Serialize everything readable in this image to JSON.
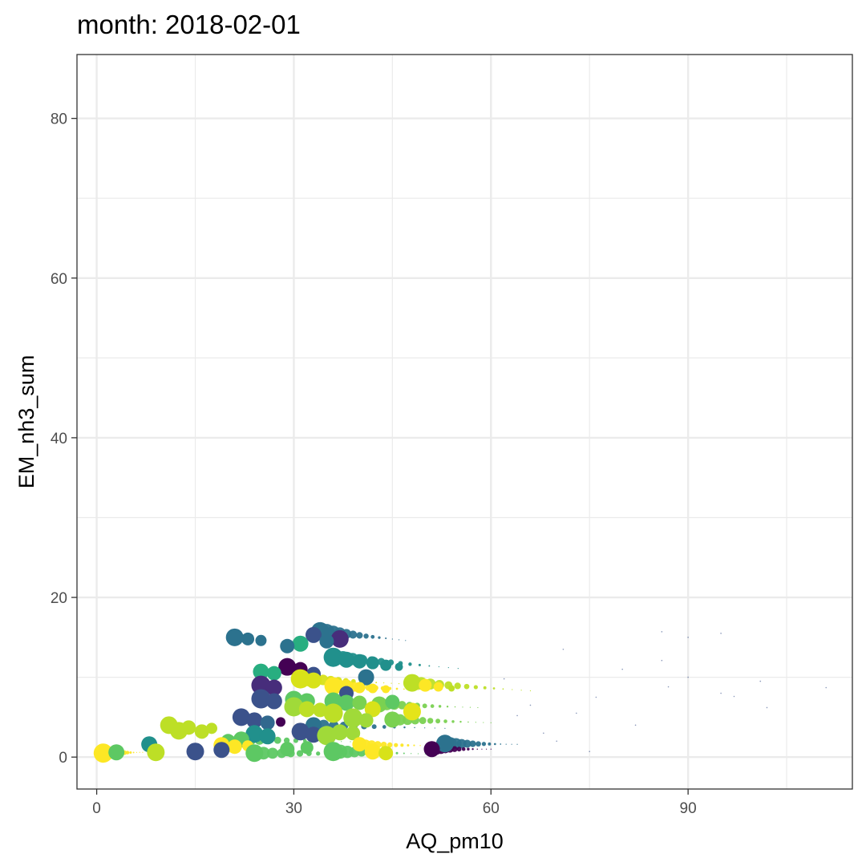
{
  "chart_data": {
    "type": "scatter",
    "title": "month: 2018-02-01",
    "xlabel": "AQ_pm10",
    "ylabel": "EM_nh3_sum",
    "xlim": [
      -3,
      115
    ],
    "ylim": [
      -4,
      88
    ],
    "x_ticks": [
      0,
      30,
      60,
      90
    ],
    "x_tick_labels": [
      "0",
      "30",
      "60",
      "90"
    ],
    "y_ticks": [
      0,
      20,
      40,
      60,
      80
    ],
    "y_tick_labels": [
      "0",
      "20",
      "40",
      "60",
      "80"
    ],
    "grid": true,
    "legend": "none",
    "panel_background": "#ffffff",
    "grid_color": "#ebebeb",
    "palette": [
      "#440154",
      "#3b528b",
      "#21908c",
      "#5dc863",
      "#bddf26",
      "#fde725"
    ],
    "points": [
      {
        "x": 21,
        "y": 15.0,
        "size": 11,
        "color": "#2c728e"
      },
      {
        "x": 23,
        "y": 14.8,
        "size": 8,
        "color": "#2c728e"
      },
      {
        "x": 25,
        "y": 14.6,
        "size": 7,
        "color": "#2c728e"
      },
      {
        "x": 34,
        "y": 15.8,
        "size": 11,
        "color": "#2c728e"
      },
      {
        "x": 33,
        "y": 15.3,
        "size": 10,
        "color": "#3b528b"
      },
      {
        "x": 37,
        "y": 14.8,
        "size": 11,
        "color": "#472d7b"
      },
      {
        "x": 35,
        "y": 14.5,
        "size": 9,
        "color": "#2c728e"
      },
      {
        "x": 31,
        "y": 14.2,
        "size": 10,
        "color": "#28ae80"
      },
      {
        "x": 29,
        "y": 13.9,
        "size": 9,
        "color": "#2c728e"
      },
      {
        "x": 36,
        "y": 12.5,
        "size": 12,
        "color": "#21908c"
      },
      {
        "x": 38,
        "y": 12.2,
        "size": 10,
        "color": "#21908c"
      },
      {
        "x": 40,
        "y": 12.0,
        "size": 9,
        "color": "#21908c"
      },
      {
        "x": 42,
        "y": 11.8,
        "size": 8,
        "color": "#21908c"
      },
      {
        "x": 44,
        "y": 11.5,
        "size": 7,
        "color": "#21908c"
      },
      {
        "x": 46,
        "y": 11.3,
        "size": 5,
        "color": "#21908c"
      },
      {
        "x": 29,
        "y": 11.3,
        "size": 11,
        "color": "#440154"
      },
      {
        "x": 31,
        "y": 11.0,
        "size": 9,
        "color": "#440154"
      },
      {
        "x": 25,
        "y": 10.7,
        "size": 10,
        "color": "#28ae80"
      },
      {
        "x": 27,
        "y": 10.5,
        "size": 9,
        "color": "#28ae80"
      },
      {
        "x": 33,
        "y": 10.4,
        "size": 9,
        "color": "#3b528b"
      },
      {
        "x": 41,
        "y": 10.0,
        "size": 10,
        "color": "#2c728e"
      },
      {
        "x": 31,
        "y": 9.8,
        "size": 12,
        "color": "#d8e219"
      },
      {
        "x": 33,
        "y": 9.6,
        "size": 10,
        "color": "#d8e219"
      },
      {
        "x": 25,
        "y": 9.0,
        "size": 12,
        "color": "#472d7b"
      },
      {
        "x": 27,
        "y": 8.7,
        "size": 10,
        "color": "#472d7b"
      },
      {
        "x": 36,
        "y": 8.9,
        "size": 11,
        "color": "#fde725"
      },
      {
        "x": 38,
        "y": 8.8,
        "size": 9,
        "color": "#fde725"
      },
      {
        "x": 40,
        "y": 8.7,
        "size": 7,
        "color": "#fde725"
      },
      {
        "x": 42,
        "y": 8.6,
        "size": 6,
        "color": "#fde725"
      },
      {
        "x": 44,
        "y": 8.5,
        "size": 5,
        "color": "#fde725"
      },
      {
        "x": 48,
        "y": 9.3,
        "size": 11,
        "color": "#bddf26"
      },
      {
        "x": 50,
        "y": 9.0,
        "size": 8,
        "color": "#fde725"
      },
      {
        "x": 52,
        "y": 8.8,
        "size": 6,
        "color": "#fde725"
      },
      {
        "x": 54,
        "y": 8.6,
        "size": 4,
        "color": "#bddf26"
      },
      {
        "x": 38,
        "y": 8.0,
        "size": 9,
        "color": "#3b528b"
      },
      {
        "x": 25,
        "y": 7.3,
        "size": 12,
        "color": "#3b528b"
      },
      {
        "x": 27,
        "y": 7.0,
        "size": 10,
        "color": "#3b528b"
      },
      {
        "x": 30,
        "y": 7.2,
        "size": 11,
        "color": "#5dc863"
      },
      {
        "x": 32,
        "y": 7.0,
        "size": 10,
        "color": "#5dc863"
      },
      {
        "x": 36,
        "y": 7.0,
        "size": 11,
        "color": "#5dc863"
      },
      {
        "x": 38,
        "y": 6.8,
        "size": 10,
        "color": "#5dc863"
      },
      {
        "x": 40,
        "y": 6.8,
        "size": 9,
        "color": "#7ad151"
      },
      {
        "x": 43,
        "y": 6.6,
        "size": 10,
        "color": "#7ad151"
      },
      {
        "x": 45,
        "y": 6.9,
        "size": 9,
        "color": "#5dc863"
      },
      {
        "x": 30,
        "y": 6.3,
        "size": 12,
        "color": "#a0da39"
      },
      {
        "x": 32,
        "y": 6.0,
        "size": 10,
        "color": "#bddf26"
      },
      {
        "x": 34,
        "y": 5.9,
        "size": 9,
        "color": "#bddf26"
      },
      {
        "x": 36,
        "y": 5.5,
        "size": 12,
        "color": "#bddf26"
      },
      {
        "x": 42,
        "y": 6.0,
        "size": 10,
        "color": "#d8e219"
      },
      {
        "x": 48,
        "y": 5.7,
        "size": 11,
        "color": "#e5e419"
      },
      {
        "x": 22,
        "y": 5.0,
        "size": 11,
        "color": "#3b528b"
      },
      {
        "x": 24,
        "y": 4.6,
        "size": 10,
        "color": "#3b528b"
      },
      {
        "x": 26,
        "y": 4.3,
        "size": 9,
        "color": "#31688e"
      },
      {
        "x": 28,
        "y": 4.4,
        "size": 6,
        "color": "#440154"
      },
      {
        "x": 33,
        "y": 4.0,
        "size": 10,
        "color": "#2c728e"
      },
      {
        "x": 39,
        "y": 4.9,
        "size": 12,
        "color": "#a0da39"
      },
      {
        "x": 41,
        "y": 4.6,
        "size": 9,
        "color": "#a0da39"
      },
      {
        "x": 45,
        "y": 4.7,
        "size": 10,
        "color": "#7ad151"
      },
      {
        "x": 11,
        "y": 4.0,
        "size": 11,
        "color": "#bddf26"
      },
      {
        "x": 12.5,
        "y": 3.3,
        "size": 11,
        "color": "#bddf26"
      },
      {
        "x": 14,
        "y": 3.7,
        "size": 9,
        "color": "#bddf26"
      },
      {
        "x": 16,
        "y": 3.2,
        "size": 9,
        "color": "#bddf26"
      },
      {
        "x": 17.5,
        "y": 3.6,
        "size": 7,
        "color": "#bddf26"
      },
      {
        "x": 31,
        "y": 3.2,
        "size": 11,
        "color": "#3b528b"
      },
      {
        "x": 33,
        "y": 2.8,
        "size": 10,
        "color": "#3b528b"
      },
      {
        "x": 35,
        "y": 2.7,
        "size": 12,
        "color": "#a0da39"
      },
      {
        "x": 37,
        "y": 3.1,
        "size": 10,
        "color": "#a0da39"
      },
      {
        "x": 39,
        "y": 3.0,
        "size": 9,
        "color": "#a0da39"
      },
      {
        "x": 24,
        "y": 2.9,
        "size": 11,
        "color": "#21908c"
      },
      {
        "x": 26,
        "y": 2.6,
        "size": 10,
        "color": "#21908c"
      },
      {
        "x": 22,
        "y": 2.2,
        "size": 10,
        "color": "#5dc863"
      },
      {
        "x": 20,
        "y": 2.0,
        "size": 9,
        "color": "#5dc863"
      },
      {
        "x": 8,
        "y": 1.6,
        "size": 10,
        "color": "#21908c"
      },
      {
        "x": 19,
        "y": 1.5,
        "size": 10,
        "color": "#fde725"
      },
      {
        "x": 21,
        "y": 1.3,
        "size": 9,
        "color": "#fde725"
      },
      {
        "x": 23,
        "y": 1.4,
        "size": 7,
        "color": "#fde725"
      },
      {
        "x": 40,
        "y": 1.6,
        "size": 9,
        "color": "#fde725"
      },
      {
        "x": 53,
        "y": 1.7,
        "size": 11,
        "color": "#2c728e"
      },
      {
        "x": 51,
        "y": 1.0,
        "size": 10,
        "color": "#440154"
      },
      {
        "x": 15,
        "y": 0.7,
        "size": 11,
        "color": "#3b528b"
      },
      {
        "x": 19,
        "y": 0.9,
        "size": 10,
        "color": "#3b528b"
      },
      {
        "x": 1,
        "y": 0.5,
        "size": 12,
        "color": "#fde725"
      },
      {
        "x": 3,
        "y": 0.6,
        "size": 10,
        "color": "#5dc863"
      },
      {
        "x": 9,
        "y": 0.6,
        "size": 11,
        "color": "#bddf26"
      },
      {
        "x": 24,
        "y": 0.5,
        "size": 11,
        "color": "#5dc863"
      },
      {
        "x": 36,
        "y": 0.7,
        "size": 12,
        "color": "#5dc863"
      },
      {
        "x": 42,
        "y": 0.7,
        "size": 10,
        "color": "#fde725"
      },
      {
        "x": 44,
        "y": 0.5,
        "size": 9,
        "color": "#d8e219"
      },
      {
        "x": 29,
        "y": 1.0,
        "size": 9,
        "color": "#5dc863"
      },
      {
        "x": 32,
        "y": 1.2,
        "size": 8,
        "color": "#5dc863"
      }
    ],
    "trails": [
      {
        "x0": 34,
        "y0": 15.8,
        "x1": 47,
        "y1": 14.6,
        "r0": 11,
        "color": "#2c728e"
      },
      {
        "x0": 36,
        "y0": 12.5,
        "x1": 55,
        "y1": 11.1,
        "r0": 10,
        "color": "#21908c"
      },
      {
        "x0": 31,
        "y0": 9.8,
        "x1": 46,
        "y1": 9.2,
        "r0": 10,
        "color": "#d8e219"
      },
      {
        "x0": 36,
        "y0": 8.9,
        "x1": 50,
        "y1": 8.4,
        "r0": 9,
        "color": "#fde725"
      },
      {
        "x0": 48,
        "y0": 9.3,
        "x1": 66,
        "y1": 8.3,
        "r0": 9,
        "color": "#bddf26"
      },
      {
        "x0": 43,
        "y0": 6.6,
        "x1": 58,
        "y1": 6.2,
        "r0": 8,
        "color": "#7ad151"
      },
      {
        "x0": 33,
        "y0": 4.0,
        "x1": 53,
        "y1": 3.6,
        "r0": 8,
        "color": "#2c728e"
      },
      {
        "x0": 45,
        "y0": 4.7,
        "x1": 60,
        "y1": 4.3,
        "r0": 8,
        "color": "#7ad151"
      },
      {
        "x0": 40,
        "y0": 1.6,
        "x1": 52,
        "y1": 1.4,
        "r0": 7,
        "color": "#fde725"
      },
      {
        "x0": 36,
        "y0": 0.7,
        "x1": 50,
        "y1": 0.4,
        "r0": 10,
        "color": "#5dc863"
      },
      {
        "x0": 1,
        "y0": 0.5,
        "x1": 7,
        "y1": 0.6,
        "r0": 10,
        "color": "#fde725"
      },
      {
        "x0": 53,
        "y0": 1.7,
        "x1": 64,
        "y1": 1.6,
        "r0": 9,
        "color": "#2c728e"
      },
      {
        "x0": 51,
        "y0": 1.0,
        "x1": 60,
        "y1": 1.0,
        "r0": 8,
        "color": "#440154"
      },
      {
        "x0": 22,
        "y0": 2.2,
        "x1": 40,
        "y1": 1.9,
        "r0": 8,
        "color": "#5dc863"
      },
      {
        "x0": 24,
        "y0": 0.5,
        "x1": 42,
        "y1": 0.4,
        "r0": 9,
        "color": "#5dc863"
      }
    ],
    "specks": [
      {
        "x": 86,
        "y": 15.7
      },
      {
        "x": 90,
        "y": 15.0
      },
      {
        "x": 95,
        "y": 15.5
      },
      {
        "x": 86,
        "y": 12.1
      },
      {
        "x": 71,
        "y": 13.5
      },
      {
        "x": 80,
        "y": 11.0
      },
      {
        "x": 90,
        "y": 10.0
      },
      {
        "x": 101,
        "y": 9.5
      },
      {
        "x": 111,
        "y": 8.7
      },
      {
        "x": 87,
        "y": 8.8
      },
      {
        "x": 95,
        "y": 8.0
      },
      {
        "x": 76,
        "y": 7.5
      },
      {
        "x": 97,
        "y": 7.6
      },
      {
        "x": 102,
        "y": 6.2
      },
      {
        "x": 82,
        "y": 4.0
      },
      {
        "x": 68,
        "y": 3.0
      },
      {
        "x": 75,
        "y": 0.7
      },
      {
        "x": 66,
        "y": 6.5
      },
      {
        "x": 70,
        "y": 2.0
      },
      {
        "x": 62,
        "y": 9.8
      },
      {
        "x": 64,
        "y": 5.2
      },
      {
        "x": 73,
        "y": 5.5
      }
    ]
  }
}
